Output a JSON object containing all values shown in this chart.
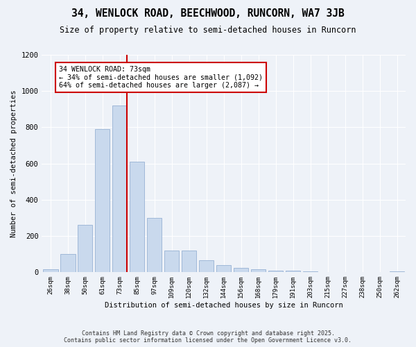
{
  "title": "34, WENLOCK ROAD, BEECHWOOD, RUNCORN, WA7 3JB",
  "subtitle": "Size of property relative to semi-detached houses in Runcorn",
  "xlabel": "Distribution of semi-detached houses by size in Runcorn",
  "ylabel": "Number of semi-detached properties",
  "property_label": "34 WENLOCK ROAD: 73sqm",
  "pct_smaller": 34,
  "pct_larger": 64,
  "count_smaller": 1092,
  "count_larger": 2087,
  "bin_labels": [
    "26sqm",
    "38sqm",
    "50sqm",
    "61sqm",
    "73sqm",
    "85sqm",
    "97sqm",
    "109sqm",
    "120sqm",
    "132sqm",
    "144sqm",
    "156sqm",
    "168sqm",
    "179sqm",
    "191sqm",
    "203sqm",
    "215sqm",
    "227sqm",
    "238sqm",
    "250sqm",
    "262sqm"
  ],
  "bin_values": [
    15,
    100,
    260,
    790,
    920,
    610,
    300,
    120,
    120,
    65,
    40,
    25,
    15,
    10,
    8,
    5,
    3,
    2,
    1,
    1,
    5
  ],
  "bar_color": "#c9d9ed",
  "bar_edge_color": "#a0b8d8",
  "vline_x_index": 4,
  "vline_color": "#cc0000",
  "annotation_box_color": "#cc0000",
  "background_color": "#eef2f8",
  "grid_color": "#ffffff",
  "ylim": [
    0,
    1200
  ],
  "yticks": [
    0,
    200,
    400,
    600,
    800,
    1000,
    1200
  ],
  "footer_line1": "Contains HM Land Registry data © Crown copyright and database right 2025.",
  "footer_line2": "Contains public sector information licensed under the Open Government Licence v3.0."
}
